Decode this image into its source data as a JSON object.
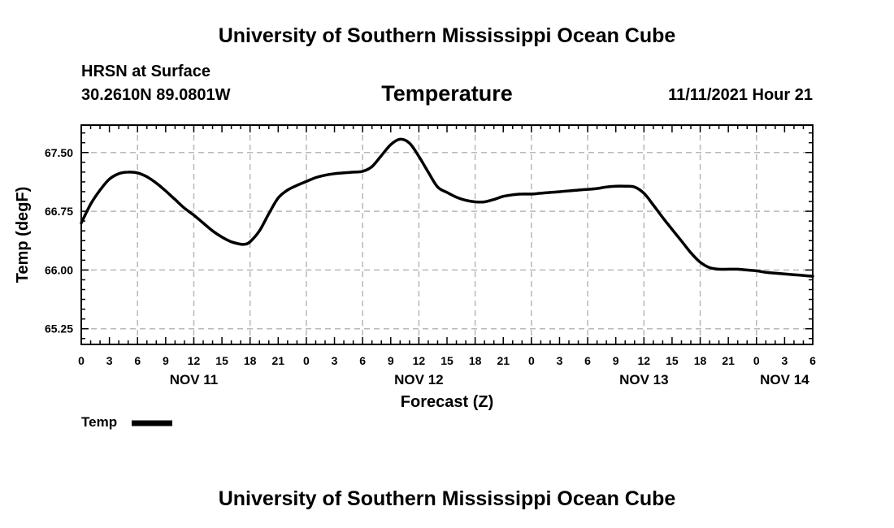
{
  "header": {
    "title_top": "University of Southern Mississippi Ocean Cube",
    "station": "HRSN at Surface",
    "coords": "30.2610N  89.0801W",
    "datetime": "11/11/2021 Hour 21",
    "title_bottom": "University of Southern Mississippi Ocean Cube"
  },
  "colors": {
    "line": "#000000",
    "grid": "#b8b8b8",
    "background": "#ffffff"
  },
  "chart_data": {
    "type": "line",
    "title": "Temperature",
    "xlabel": "Forecast (Z)",
    "ylabel": "Temp (degF)",
    "xlim": [
      0,
      78
    ],
    "ylim": [
      65.05,
      67.85
    ],
    "yticks": [
      65.25,
      66.0,
      66.75,
      67.5
    ],
    "ytick_labels": [
      "65.25",
      "66.00",
      "66.75",
      "67.50"
    ],
    "xtick_labels": [
      "0",
      "3",
      "6",
      "9",
      "12",
      "15",
      "18",
      "21",
      "0",
      "3",
      "6",
      "9",
      "12",
      "15",
      "18",
      "21",
      "0",
      "3",
      "6",
      "9",
      "12",
      "15",
      "18",
      "21",
      "0",
      "3",
      "6"
    ],
    "day_labels": [
      {
        "label": "NOV 11",
        "hour": 12
      },
      {
        "label": "NOV 12",
        "hour": 36
      },
      {
        "label": "NOV 13",
        "hour": 60
      },
      {
        "label": "NOV 14",
        "hour": 75
      }
    ],
    "grid": true,
    "legend": "bottom-left",
    "series": [
      {
        "name": "Temp",
        "x": [
          0,
          1,
          2,
          3,
          4,
          5,
          6,
          7,
          8,
          9,
          10,
          11,
          12,
          13,
          14,
          15,
          16,
          17,
          17.5,
          18,
          19,
          20,
          21,
          22,
          23,
          24,
          25,
          26,
          27,
          28,
          29,
          30,
          31,
          32,
          33,
          34,
          35,
          36,
          37,
          38,
          39,
          40,
          41,
          42,
          43,
          44,
          45,
          46,
          47,
          48,
          49,
          50,
          51,
          52,
          53,
          54,
          55,
          56,
          57,
          58,
          59,
          60,
          61,
          62,
          63,
          64,
          65,
          66,
          67,
          68,
          69,
          70,
          71,
          72,
          73,
          74,
          75,
          76,
          77,
          78
        ],
        "values": [
          66.6,
          66.84,
          67.02,
          67.16,
          67.23,
          67.25,
          67.24,
          67.19,
          67.11,
          67.01,
          66.9,
          66.79,
          66.7,
          66.6,
          66.5,
          66.42,
          66.36,
          66.33,
          66.33,
          66.36,
          66.5,
          66.72,
          66.92,
          67.02,
          67.08,
          67.13,
          67.18,
          67.21,
          67.23,
          67.24,
          67.25,
          67.26,
          67.32,
          67.46,
          67.6,
          67.67,
          67.62,
          67.45,
          67.25,
          67.06,
          66.99,
          66.93,
          66.89,
          66.87,
          66.87,
          66.9,
          66.94,
          66.96,
          66.97,
          66.97,
          66.98,
          66.99,
          67.0,
          67.01,
          67.02,
          67.03,
          67.04,
          67.06,
          67.07,
          67.07,
          67.06,
          66.98,
          66.83,
          66.67,
          66.52,
          66.37,
          66.22,
          66.1,
          66.03,
          66.01,
          66.01,
          66.01,
          66.0,
          65.99,
          65.97,
          65.96,
          65.95,
          65.94,
          65.93,
          65.92
        ]
      }
    ]
  }
}
